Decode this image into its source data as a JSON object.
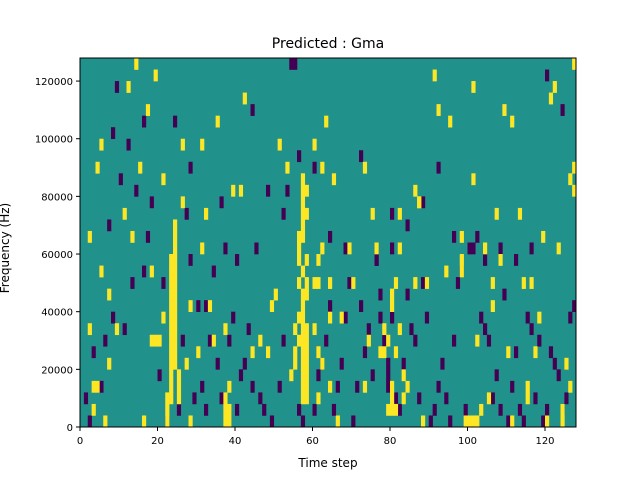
{
  "chart_data": {
    "type": "heatmap",
    "title": "Predicted : Gma",
    "xlabel": "Time step",
    "ylabel": "Frequency (Hz)",
    "xlim": [
      0,
      128
    ],
    "ylim": [
      0,
      128000
    ],
    "x_ticks": [
      0,
      20,
      40,
      60,
      80,
      100,
      120
    ],
    "x_tick_labels": [
      "0",
      "20",
      "40",
      "60",
      "80",
      "100",
      "120"
    ],
    "y_ticks": [
      0,
      20000,
      40000,
      60000,
      80000,
      100000,
      120000
    ],
    "y_tick_labels": [
      "0",
      "20000",
      "40000",
      "60000",
      "80000",
      "100000",
      "120000"
    ],
    "grid": false,
    "colormap": "viridis",
    "levels": {
      "low": -1,
      "mid": 0,
      "high": 1
    },
    "colors": {
      "low": "#440154",
      "mid": "#21918c",
      "high": "#fde725"
    },
    "background_level": 0,
    "high_cells": [
      [
        2,
        64000
      ],
      [
        2,
        32000
      ],
      [
        3,
        4000
      ],
      [
        4,
        12000
      ],
      [
        5,
        96000
      ],
      [
        5,
        52000
      ],
      [
        6,
        0
      ],
      [
        7,
        20000
      ],
      [
        12,
        116000
      ],
      [
        14,
        124000
      ],
      [
        15,
        88000
      ],
      [
        16,
        0
      ],
      [
        17,
        108000
      ],
      [
        18,
        28000
      ],
      [
        19,
        120000
      ],
      [
        20,
        28000
      ],
      [
        21,
        84000
      ],
      [
        22,
        0
      ],
      [
        22,
        4000
      ],
      [
        22,
        8000
      ],
      [
        23,
        8000
      ],
      [
        23,
        12000
      ],
      [
        23,
        16000
      ],
      [
        23,
        20000
      ],
      [
        23,
        24000
      ],
      [
        23,
        28000
      ],
      [
        23,
        32000
      ],
      [
        23,
        36000
      ],
      [
        23,
        40000
      ],
      [
        23,
        44000
      ],
      [
        23,
        48000
      ],
      [
        23,
        52000
      ],
      [
        23,
        56000
      ],
      [
        24,
        20000
      ],
      [
        24,
        24000
      ],
      [
        24,
        28000
      ],
      [
        24,
        32000
      ],
      [
        24,
        36000
      ],
      [
        24,
        40000
      ],
      [
        24,
        44000
      ],
      [
        24,
        48000
      ],
      [
        24,
        52000
      ],
      [
        24,
        56000
      ],
      [
        24,
        60000
      ],
      [
        24,
        64000
      ],
      [
        25,
        8000
      ],
      [
        25,
        12000
      ],
      [
        25,
        16000
      ],
      [
        26,
        76000
      ],
      [
        27,
        20000
      ],
      [
        28,
        0
      ],
      [
        31,
        96000
      ],
      [
        32,
        72000
      ],
      [
        33,
        40000
      ],
      [
        35,
        104000
      ],
      [
        37,
        4000
      ],
      [
        37,
        0
      ],
      [
        37,
        8000
      ],
      [
        37,
        32000
      ],
      [
        38,
        12000
      ],
      [
        38,
        0
      ],
      [
        38,
        4000
      ],
      [
        44,
        24000
      ],
      [
        49,
        40000
      ],
      [
        50,
        44000
      ],
      [
        51,
        96000
      ],
      [
        53,
        88000
      ],
      [
        54,
        16000
      ],
      [
        55,
        24000
      ],
      [
        55,
        32000
      ],
      [
        55,
        20000
      ],
      [
        56,
        28000
      ],
      [
        56,
        36000
      ],
      [
        56,
        48000
      ],
      [
        56,
        56000
      ],
      [
        56,
        60000
      ],
      [
        56,
        64000
      ],
      [
        57,
        80000
      ],
      [
        57,
        84000
      ],
      [
        57,
        76000
      ],
      [
        57,
        72000
      ],
      [
        57,
        68000
      ],
      [
        57,
        64000
      ],
      [
        57,
        52000
      ],
      [
        57,
        44000
      ],
      [
        57,
        40000
      ],
      [
        57,
        36000
      ],
      [
        57,
        32000
      ],
      [
        57,
        28000
      ],
      [
        57,
        24000
      ],
      [
        57,
        20000
      ],
      [
        57,
        16000
      ],
      [
        57,
        12000
      ],
      [
        57,
        8000
      ],
      [
        58,
        80000
      ],
      [
        58,
        72000
      ],
      [
        58,
        56000
      ],
      [
        58,
        48000
      ],
      [
        58,
        44000
      ],
      [
        58,
        32000
      ],
      [
        58,
        28000
      ],
      [
        58,
        24000
      ],
      [
        58,
        20000
      ],
      [
        58,
        16000
      ],
      [
        58,
        12000
      ],
      [
        58,
        8000
      ],
      [
        60,
        96000
      ],
      [
        60,
        32000
      ],
      [
        61,
        56000
      ],
      [
        61,
        48000
      ],
      [
        61,
        8000
      ],
      [
        63,
        104000
      ],
      [
        62,
        60000
      ],
      [
        62,
        20000
      ],
      [
        64,
        12000
      ],
      [
        64,
        48000
      ],
      [
        65,
        84000
      ],
      [
        66,
        0
      ],
      [
        73,
        12000
      ],
      [
        74,
        28000
      ],
      [
        77,
        24000
      ],
      [
        78,
        24000
      ],
      [
        78,
        32000
      ],
      [
        79,
        28000
      ],
      [
        79,
        4000
      ],
      [
        80,
        4000
      ],
      [
        80,
        8000
      ],
      [
        80,
        12000
      ],
      [
        80,
        40000
      ],
      [
        80,
        44000
      ],
      [
        81,
        24000
      ],
      [
        81,
        4000
      ],
      [
        82,
        60000
      ],
      [
        83,
        8000
      ],
      [
        83,
        16000
      ],
      [
        84,
        12000
      ],
      [
        86,
        80000
      ],
      [
        87,
        76000
      ],
      [
        88,
        0
      ],
      [
        95,
        104000
      ],
      [
        98,
        56000
      ],
      [
        98,
        52000
      ],
      [
        99,
        0
      ],
      [
        100,
        0
      ],
      [
        101,
        0
      ],
      [
        101,
        84000
      ],
      [
        102,
        0
      ],
      [
        103,
        4000
      ],
      [
        104,
        60000
      ],
      [
        105,
        8000
      ],
      [
        106,
        40000
      ],
      [
        106,
        48000
      ],
      [
        108,
        56000
      ],
      [
        109,
        108000
      ],
      [
        110,
        24000
      ],
      [
        111,
        0
      ],
      [
        115,
        12000
      ],
      [
        115,
        8000
      ],
      [
        116,
        48000
      ],
      [
        117,
        24000
      ],
      [
        118,
        36000
      ],
      [
        119,
        64000
      ],
      [
        120,
        0
      ],
      [
        121,
        112000
      ],
      [
        122,
        116000
      ],
      [
        123,
        60000
      ],
      [
        124,
        0
      ],
      [
        125,
        20000
      ],
      [
        126,
        12000
      ],
      [
        127,
        88000
      ],
      [
        127,
        80000
      ],
      [
        127,
        124000
      ],
      [
        126,
        84000
      ],
      [
        124,
        4000
      ],
      [
        107,
        72000
      ],
      [
        101,
        116000
      ],
      [
        98,
        64000
      ],
      [
        94,
        52000
      ],
      [
        92,
        108000
      ],
      [
        91,
        120000
      ],
      [
        87,
        76000
      ],
      [
        86,
        48000
      ],
      [
        82,
        72000
      ],
      [
        76,
        60000
      ],
      [
        73,
        88000
      ],
      [
        69,
        60000
      ],
      [
        67,
        36000
      ],
      [
        64,
        36000
      ],
      [
        61,
        24000
      ],
      [
        62,
        88000
      ],
      [
        48,
        24000
      ],
      [
        46,
        28000
      ],
      [
        42,
        112000
      ],
      [
        41,
        80000
      ],
      [
        39,
        80000
      ],
      [
        34,
        28000
      ],
      [
        31,
        60000
      ],
      [
        30,
        24000
      ],
      [
        28,
        40000
      ],
      [
        26,
        96000
      ],
      [
        24,
        68000
      ],
      [
        21,
        36000
      ],
      [
        19,
        28000
      ],
      [
        18,
        52000
      ],
      [
        13,
        64000
      ],
      [
        11,
        72000
      ],
      [
        9,
        32000
      ],
      [
        7,
        44000
      ],
      [
        4,
        88000
      ],
      [
        3,
        12000
      ],
      [
        60,
        48000
      ],
      [
        70,
        48000
      ],
      [
        75,
        72000
      ],
      [
        81,
        48000
      ],
      [
        82,
        32000
      ],
      [
        111,
        104000
      ],
      [
        113,
        72000
      ],
      [
        114,
        48000
      ],
      [
        102,
        28000
      ],
      [
        89,
        48000
      ]
    ],
    "low_cells": [
      [
        1,
        8000
      ],
      [
        2,
        0
      ],
      [
        3,
        24000
      ],
      [
        5,
        12000
      ],
      [
        6,
        28000
      ],
      [
        7,
        68000
      ],
      [
        8,
        100000
      ],
      [
        9,
        116000
      ],
      [
        10,
        84000
      ],
      [
        11,
        32000
      ],
      [
        12,
        96000
      ],
      [
        13,
        48000
      ],
      [
        14,
        80000
      ],
      [
        16,
        104000
      ],
      [
        17,
        64000
      ],
      [
        18,
        76000
      ],
      [
        20,
        16000
      ],
      [
        21,
        48000
      ],
      [
        22,
        0
      ],
      [
        25,
        4000
      ],
      [
        26,
        28000
      ],
      [
        27,
        72000
      ],
      [
        28,
        56000
      ],
      [
        29,
        8000
      ],
      [
        30,
        40000
      ],
      [
        31,
        12000
      ],
      [
        32,
        4000
      ],
      [
        33,
        28000
      ],
      [
        34,
        52000
      ],
      [
        35,
        20000
      ],
      [
        36,
        8000
      ],
      [
        37,
        60000
      ],
      [
        38,
        28000
      ],
      [
        39,
        36000
      ],
      [
        40,
        4000
      ],
      [
        41,
        16000
      ],
      [
        42,
        20000
      ],
      [
        43,
        32000
      ],
      [
        44,
        12000
      ],
      [
        45,
        60000
      ],
      [
        46,
        8000
      ],
      [
        47,
        4000
      ],
      [
        49,
        0
      ],
      [
        51,
        12000
      ],
      [
        52,
        28000
      ],
      [
        53,
        80000
      ],
      [
        54,
        124000
      ],
      [
        55,
        124000
      ],
      [
        56,
        4000
      ],
      [
        57,
        0
      ],
      [
        60,
        4000
      ],
      [
        61,
        16000
      ],
      [
        62,
        20000
      ],
      [
        63,
        28000
      ],
      [
        64,
        40000
      ],
      [
        65,
        4000
      ],
      [
        66,
        12000
      ],
      [
        67,
        20000
      ],
      [
        68,
        36000
      ],
      [
        69,
        48000
      ],
      [
        70,
        0
      ],
      [
        71,
        12000
      ],
      [
        72,
        40000
      ],
      [
        73,
        24000
      ],
      [
        74,
        32000
      ],
      [
        75,
        16000
      ],
      [
        76,
        56000
      ],
      [
        77,
        44000
      ],
      [
        77,
        36000
      ],
      [
        78,
        28000
      ],
      [
        79,
        20000
      ],
      [
        79,
        16000
      ],
      [
        79,
        12000
      ],
      [
        80,
        36000
      ],
      [
        80,
        60000
      ],
      [
        81,
        8000
      ],
      [
        82,
        4000
      ],
      [
        83,
        20000
      ],
      [
        84,
        44000
      ],
      [
        85,
        32000
      ],
      [
        86,
        28000
      ],
      [
        87,
        8000
      ],
      [
        88,
        48000
      ],
      [
        89,
        36000
      ],
      [
        90,
        0
      ],
      [
        91,
        4000
      ],
      [
        92,
        12000
      ],
      [
        93,
        20000
      ],
      [
        94,
        8000
      ],
      [
        95,
        0
      ],
      [
        96,
        28000
      ],
      [
        97,
        48000
      ],
      [
        98,
        52000
      ],
      [
        99,
        4000
      ],
      [
        100,
        0
      ],
      [
        101,
        60000
      ],
      [
        102,
        64000
      ],
      [
        103,
        36000
      ],
      [
        104,
        32000
      ],
      [
        105,
        28000
      ],
      [
        106,
        8000
      ],
      [
        107,
        16000
      ],
      [
        108,
        4000
      ],
      [
        109,
        44000
      ],
      [
        110,
        0
      ],
      [
        111,
        12000
      ],
      [
        112,
        24000
      ],
      [
        113,
        4000
      ],
      [
        114,
        0
      ],
      [
        115,
        36000
      ],
      [
        116,
        32000
      ],
      [
        117,
        8000
      ],
      [
        118,
        28000
      ],
      [
        119,
        0
      ],
      [
        120,
        4000
      ],
      [
        121,
        24000
      ],
      [
        122,
        20000
      ],
      [
        123,
        16000
      ],
      [
        124,
        4000
      ],
      [
        125,
        8000
      ],
      [
        126,
        36000
      ],
      [
        127,
        40000
      ],
      [
        8,
        36000
      ],
      [
        16,
        52000
      ],
      [
        24,
        104000
      ],
      [
        28,
        88000
      ],
      [
        32,
        40000
      ],
      [
        36,
        76000
      ],
      [
        40,
        56000
      ],
      [
        44,
        108000
      ],
      [
        48,
        80000
      ],
      [
        52,
        72000
      ],
      [
        56,
        92000
      ],
      [
        60,
        88000
      ],
      [
        64,
        64000
      ],
      [
        68,
        60000
      ],
      [
        72,
        92000
      ],
      [
        76,
        56000
      ],
      [
        80,
        72000
      ],
      [
        84,
        68000
      ],
      [
        88,
        76000
      ],
      [
        92,
        88000
      ],
      [
        96,
        64000
      ],
      [
        100,
        60000
      ],
      [
        104,
        56000
      ],
      [
        108,
        60000
      ],
      [
        112,
        56000
      ],
      [
        116,
        60000
      ],
      [
        120,
        120000
      ],
      [
        124,
        108000
      ]
    ]
  }
}
